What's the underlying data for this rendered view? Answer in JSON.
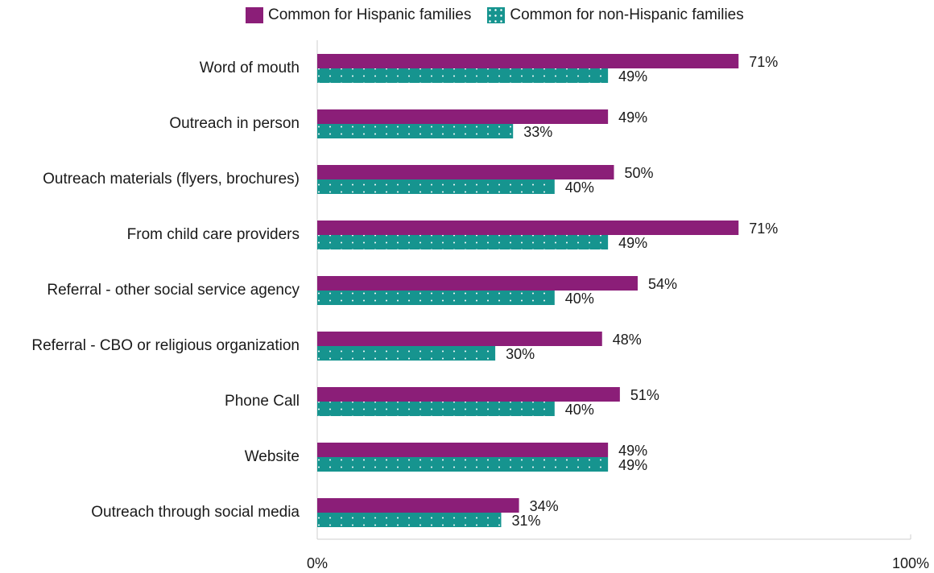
{
  "colors": {
    "hispanic": "#8b1e78",
    "non_hispanic": "#16948f",
    "axis": "#cfcfcf",
    "dot": "#ffffff"
  },
  "legend": {
    "hispanic_label": "Common for Hispanic families",
    "non_hispanic_label": "Common for non-Hispanic families"
  },
  "chart_data": {
    "type": "bar",
    "orientation": "horizontal",
    "categories": [
      "Word of mouth",
      "Outreach in person",
      "Outreach materials (flyers, brochures)",
      "From child care providers",
      "Referral - other social service agency",
      "Referral - CBO or religious organization",
      "Phone Call",
      "Website",
      "Outreach through social media"
    ],
    "series": [
      {
        "name": "Common for Hispanic families",
        "values": [
          71,
          49,
          50,
          71,
          54,
          48,
          51,
          49,
          34
        ],
        "labels": [
          "71%",
          "49%",
          "50%",
          "71%",
          "54%",
          "48%",
          "51%",
          "49%",
          "34%"
        ]
      },
      {
        "name": "Common for non-Hispanic families",
        "values": [
          49,
          33,
          40,
          49,
          40,
          30,
          40,
          49,
          31
        ],
        "labels": [
          "49%",
          "33%",
          "40%",
          "49%",
          "40%",
          "30%",
          "40%",
          "49%",
          "31%"
        ]
      }
    ],
    "xlim": [
      0,
      100
    ],
    "xticks": [
      "0%",
      "100%"
    ],
    "legend_position": "top",
    "grid": false
  }
}
